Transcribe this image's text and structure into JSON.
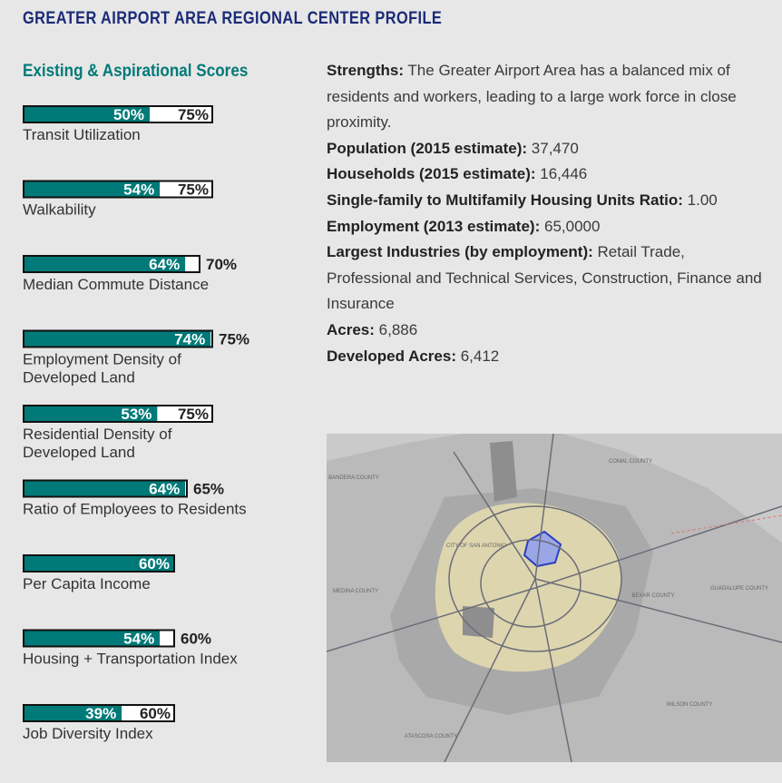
{
  "header": {
    "title": "GREATER AIRPORT AREA REGIONAL CENTER PROFILE"
  },
  "scores": {
    "title": "Existing & Aspirational Scores",
    "color": "#007a78",
    "items": [
      {
        "name": [
          "Transit Utilization"
        ],
        "existing": 50,
        "existing_label": "50%",
        "aspirational": 75,
        "aspirational_label": "75%"
      },
      {
        "name": [
          "Walkability"
        ],
        "existing": 54,
        "existing_label": "54%",
        "aspirational": 75,
        "aspirational_label": "75%"
      },
      {
        "name": [
          "Median Commute Distance"
        ],
        "existing": 64,
        "existing_label": "64%",
        "aspirational": 70,
        "aspirational_label": "70%"
      },
      {
        "name": [
          "Employment Density of",
          "Developed Land"
        ],
        "existing": 74,
        "existing_label": "74%",
        "aspirational": 75,
        "aspirational_label": "75%"
      },
      {
        "name": [
          "Residential Density of",
          "Developed Land"
        ],
        "existing": 53,
        "existing_label": "53%",
        "aspirational": 75,
        "aspirational_label": "75%"
      },
      {
        "name": [
          "Ratio of Employees to Residents"
        ],
        "existing": 64,
        "existing_label": "64%",
        "aspirational": 65,
        "aspirational_label": "65%"
      },
      {
        "name": [
          "Per Capita Income"
        ],
        "existing": 60,
        "existing_label": "60%",
        "aspirational": null,
        "aspirational_label": null
      },
      {
        "name": [
          "Housing + Transportation Index"
        ],
        "existing": 54,
        "existing_label": "54%",
        "aspirational": 60,
        "aspirational_label": "60%"
      },
      {
        "name": [
          "Job Diversity Index"
        ],
        "existing": 39,
        "existing_label": "39%",
        "aspirational": 60,
        "aspirational_label": "60%"
      }
    ]
  },
  "profile": [
    {
      "label": "Strengths:",
      "text": "The Greater Airport Area has a balanced mix of residents and workers, leading to a large work force in close proximity."
    },
    {
      "label": "Population (2015 estimate):",
      "text": "37,470"
    },
    {
      "label": "Households (2015 estimate):",
      "text": "16,446"
    },
    {
      "label": "Single-family to Multifamily Housing Units Ratio:",
      "text": "1.00"
    },
    {
      "label": "Employment (2013 estimate):",
      "text": "65,0000"
    },
    {
      "label": "Largest Industries (by employment):",
      "text": "Retail Trade, Professional and Technical Services, Construction, Finance and Insurance"
    },
    {
      "label": "Acres:",
      "text": "6,886"
    },
    {
      "label": "Developed Acres:",
      "text": "6,412"
    }
  ],
  "map": {
    "labels": [
      "BANDERA COUNTY",
      "COMAL COUNTY",
      "CITY OF SAN ANTONIO",
      "MEDINA COUNTY",
      "BEXAR COUNTY",
      "GUADALUPE COUNTY",
      "ATASCOSA COUNTY",
      "WILSON COUNTY"
    ]
  }
}
